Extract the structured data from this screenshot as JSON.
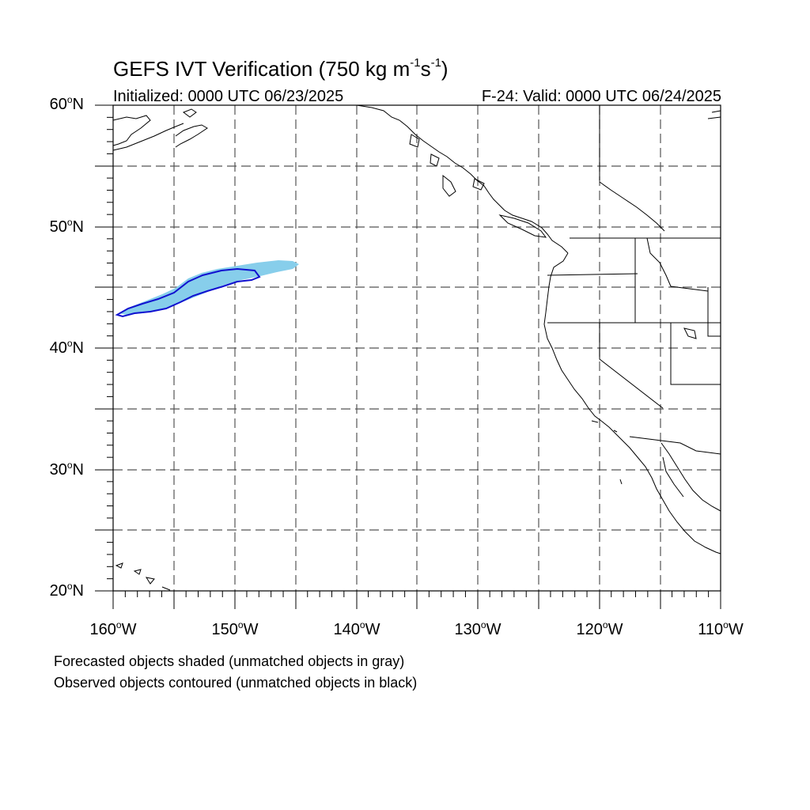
{
  "title": {
    "prefix": "GEFS IVT Verification (750 kg m",
    "exp1": "-1",
    "mid": "s",
    "exp2": "-1",
    "suffix": ")"
  },
  "initialized": "Initialized: 0000 UTC 06/23/2025",
  "valid": "F-24: Valid: 0000 UTC 06/24/2025",
  "lat_labels": [
    {
      "num": "60",
      "unit": "o",
      "dir": "N"
    },
    {
      "num": "50",
      "unit": "o",
      "dir": "N"
    },
    {
      "num": "40",
      "unit": "o",
      "dir": "N"
    },
    {
      "num": "30",
      "unit": "o",
      "dir": "N"
    },
    {
      "num": "20",
      "unit": "o",
      "dir": "N"
    }
  ],
  "lon_labels": [
    {
      "num": "160",
      "unit": "o",
      "dir": "W"
    },
    {
      "num": "150",
      "unit": "o",
      "dir": "W"
    },
    {
      "num": "140",
      "unit": "o",
      "dir": "W"
    },
    {
      "num": "130",
      "unit": "o",
      "dir": "W"
    },
    {
      "num": "120",
      "unit": "o",
      "dir": "W"
    },
    {
      "num": "110",
      "unit": "o",
      "dir": "W"
    }
  ],
  "legend_note_1": "Forecasted objects shaded (unmatched objects in gray)",
  "legend_note_2": "Observed objects contoured (unmatched objects in black)",
  "colors": {
    "forecast_fill": "#87ceeb",
    "observed_contour": "#1010d0",
    "grid": "#555555",
    "coast": "#000000"
  },
  "map_extent": {
    "lon_min": -160,
    "lon_max": -110,
    "lat_min": 20,
    "lat_max": 60
  }
}
